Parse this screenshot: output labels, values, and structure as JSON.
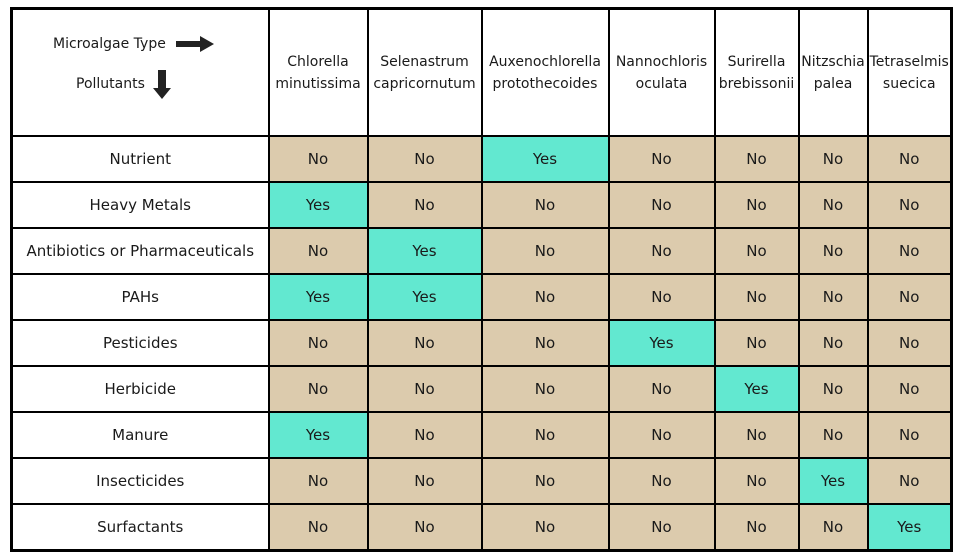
{
  "table": {
    "corner": {
      "column_label": "Microalgae Type",
      "row_label": "Pollutants"
    },
    "columns": [
      [
        "Chlorella",
        "minutissima"
      ],
      [
        "Selenastrum",
        "capricornutum"
      ],
      [
        "Auxenochlorella",
        "protothecoides"
      ],
      [
        "Nannochloris",
        "oculata"
      ],
      [
        "Surirella",
        "brebissonii"
      ],
      [
        "Nitzschia",
        "palea"
      ],
      [
        "Tetraselmis",
        "suecica"
      ]
    ],
    "rows": [
      {
        "label": "Nutrient",
        "cells": [
          "No",
          "No",
          "Yes",
          "No",
          "No",
          "No",
          "No"
        ]
      },
      {
        "label": "Heavy Metals",
        "cells": [
          "Yes",
          "No",
          "No",
          "No",
          "No",
          "No",
          "No"
        ]
      },
      {
        "label": "Antibiotics or Pharmaceuticals",
        "cells": [
          "No",
          "Yes",
          "No",
          "No",
          "No",
          "No",
          "No"
        ]
      },
      {
        "label": "PAHs",
        "cells": [
          "Yes",
          "Yes",
          "No",
          "No",
          "No",
          "No",
          "No"
        ]
      },
      {
        "label": "Pesticides",
        "cells": [
          "No",
          "No",
          "No",
          "Yes",
          "No",
          "No",
          "No"
        ]
      },
      {
        "label": "Herbicide",
        "cells": [
          "No",
          "No",
          "No",
          "No",
          "Yes",
          "No",
          "No"
        ]
      },
      {
        "label": "Manure",
        "cells": [
          "Yes",
          "No",
          "No",
          "No",
          "No",
          "No",
          "No"
        ]
      },
      {
        "label": "Insecticides",
        "cells": [
          "No",
          "No",
          "No",
          "No",
          "No",
          "Yes",
          "No"
        ]
      },
      {
        "label": "Surfactants",
        "cells": [
          "No",
          "No",
          "No",
          "No",
          "No",
          "No",
          "Yes"
        ]
      }
    ],
    "colors": {
      "Yes": "#62e8d0",
      "No": "#dccbad"
    }
  }
}
